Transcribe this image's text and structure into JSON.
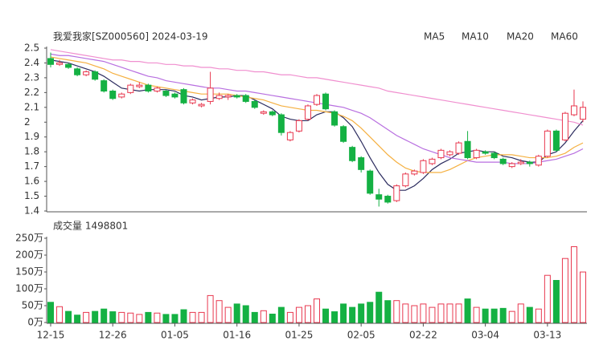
{
  "chart_data": [
    {
      "type": "candlestick",
      "title": "我爱我家[SZ000560] 2024-03-19",
      "categories": [
        "12-15",
        null,
        null,
        null,
        null,
        null,
        null,
        "12-26",
        null,
        null,
        null,
        null,
        null,
        null,
        "01-05",
        null,
        null,
        null,
        null,
        null,
        null,
        "01-16",
        null,
        null,
        null,
        null,
        null,
        null,
        "01-25",
        null,
        null,
        null,
        null,
        null,
        null,
        "02-05",
        null,
        null,
        null,
        null,
        null,
        null,
        "02-22",
        null,
        null,
        null,
        null,
        null,
        null,
        "03-04",
        null,
        null,
        null,
        null,
        null,
        null,
        "03-13",
        null,
        null,
        null,
        null
      ],
      "open": [
        2.43,
        2.39,
        2.39,
        2.36,
        2.32,
        2.34,
        2.28,
        2.21,
        2.17,
        2.2,
        2.24,
        2.25,
        2.21,
        2.21,
        2.19,
        2.22,
        2.13,
        2.11,
        2.14,
        2.16,
        2.17,
        2.18,
        2.18,
        2.14,
        2.06,
        2.07,
        2.05,
        1.88,
        1.94,
        2.02,
        2.12,
        2.19,
        2.07,
        1.97,
        1.83,
        1.76,
        1.67,
        1.51,
        1.5,
        1.47,
        1.57,
        1.65,
        1.66,
        1.72,
        1.76,
        1.78,
        1.79,
        1.87,
        1.76,
        1.8,
        1.79,
        1.75,
        1.7,
        1.72,
        1.73,
        1.71,
        1.77,
        1.94,
        1.88,
        2.05,
        2.02
      ],
      "high": [
        2.47,
        2.42,
        2.4,
        2.37,
        2.35,
        2.35,
        2.29,
        2.22,
        2.2,
        2.26,
        2.27,
        2.26,
        2.24,
        2.22,
        2.2,
        2.23,
        2.16,
        2.13,
        2.34,
        2.2,
        2.19,
        2.19,
        2.19,
        2.15,
        2.08,
        2.08,
        2.06,
        1.94,
        2.02,
        2.12,
        2.19,
        2.2,
        2.08,
        1.98,
        1.84,
        1.77,
        1.68,
        1.55,
        1.51,
        1.58,
        1.66,
        1.68,
        1.75,
        1.76,
        1.82,
        1.81,
        1.87,
        1.94,
        1.82,
        1.81,
        1.8,
        1.76,
        1.73,
        1.75,
        1.74,
        1.78,
        1.95,
        1.95,
        2.07,
        2.22,
        2.14
      ],
      "low": [
        2.37,
        2.38,
        2.36,
        2.31,
        2.31,
        2.28,
        2.2,
        2.15,
        2.16,
        2.19,
        2.23,
        2.2,
        2.2,
        2.17,
        2.16,
        2.12,
        2.12,
        2.1,
        2.12,
        2.15,
        2.15,
        2.16,
        2.13,
        2.09,
        2.05,
        2.04,
        1.91,
        1.87,
        1.93,
        2.01,
        2.11,
        2.08,
        1.97,
        1.86,
        1.73,
        1.66,
        1.51,
        1.43,
        1.45,
        1.46,
        1.56,
        1.64,
        1.65,
        1.71,
        1.75,
        1.77,
        1.78,
        1.75,
        1.75,
        1.78,
        1.75,
        1.71,
        1.69,
        1.71,
        1.7,
        1.7,
        1.76,
        1.8,
        1.87,
        2.04,
        2.0
      ],
      "close": [
        2.39,
        2.4,
        2.37,
        2.32,
        2.34,
        2.29,
        2.21,
        2.16,
        2.19,
        2.25,
        2.25,
        2.21,
        2.23,
        2.18,
        2.17,
        2.13,
        2.15,
        2.12,
        2.23,
        2.18,
        2.18,
        2.17,
        2.14,
        2.1,
        2.07,
        2.05,
        1.93,
        1.93,
        2.01,
        2.11,
        2.18,
        2.09,
        1.98,
        1.87,
        1.74,
        1.68,
        1.52,
        1.48,
        1.46,
        1.57,
        1.65,
        1.67,
        1.74,
        1.75,
        1.81,
        1.8,
        1.86,
        1.76,
        1.81,
        1.79,
        1.76,
        1.72,
        1.72,
        1.73,
        1.72,
        1.77,
        1.94,
        1.81,
        2.06,
        2.11,
        2.1
      ],
      "up_color": "#e8384f",
      "down_color": "#14b143",
      "series": [
        {
          "name": "MA5",
          "color": "#2b2b5e",
          "values": [
            2.42,
            2.41,
            2.4,
            2.38,
            2.36,
            2.34,
            2.31,
            2.27,
            2.23,
            2.22,
            2.21,
            2.22,
            2.22,
            2.22,
            2.21,
            2.18,
            2.17,
            2.15,
            2.16,
            2.17,
            2.17,
            2.18,
            2.18,
            2.15,
            2.12,
            2.09,
            2.04,
            2.02,
            2.01,
            2.01,
            2.05,
            2.07,
            2.07,
            2.03,
            1.97,
            1.87,
            1.76,
            1.66,
            1.58,
            1.54,
            1.54,
            1.57,
            1.62,
            1.68,
            1.72,
            1.75,
            1.79,
            1.8,
            1.81,
            1.8,
            1.8,
            1.77,
            1.76,
            1.74,
            1.73,
            1.73,
            1.78,
            1.8,
            1.86,
            1.94,
            2.01
          ]
        },
        {
          "name": "MA10",
          "color": "#f5b041",
          "values": [
            2.44,
            2.43,
            2.42,
            2.41,
            2.4,
            2.38,
            2.36,
            2.33,
            2.31,
            2.29,
            2.27,
            2.25,
            2.24,
            2.23,
            2.22,
            2.21,
            2.2,
            2.19,
            2.19,
            2.19,
            2.19,
            2.18,
            2.17,
            2.16,
            2.15,
            2.13,
            2.11,
            2.1,
            2.09,
            2.08,
            2.08,
            2.07,
            2.06,
            2.04,
            2.01,
            1.96,
            1.9,
            1.84,
            1.78,
            1.73,
            1.69,
            1.67,
            1.66,
            1.66,
            1.66,
            1.68,
            1.71,
            1.74,
            1.76,
            1.77,
            1.78,
            1.78,
            1.78,
            1.77,
            1.76,
            1.76,
            1.76,
            1.77,
            1.79,
            1.83,
            1.86
          ]
        },
        {
          "name": "MA20",
          "color": "#b86fe0",
          "values": [
            2.46,
            2.45,
            2.45,
            2.44,
            2.43,
            2.42,
            2.41,
            2.39,
            2.37,
            2.35,
            2.33,
            2.31,
            2.3,
            2.28,
            2.27,
            2.26,
            2.25,
            2.24,
            2.23,
            2.23,
            2.22,
            2.21,
            2.21,
            2.2,
            2.19,
            2.18,
            2.17,
            2.16,
            2.15,
            2.14,
            2.13,
            2.12,
            2.11,
            2.1,
            2.08,
            2.06,
            2.03,
            1.99,
            1.95,
            1.91,
            1.88,
            1.85,
            1.82,
            1.8,
            1.78,
            1.76,
            1.75,
            1.74,
            1.73,
            1.73,
            1.73,
            1.73,
            1.72,
            1.72,
            1.72,
            1.73,
            1.74,
            1.75,
            1.77,
            1.79,
            1.82
          ]
        },
        {
          "name": "MA60",
          "color": "#f08fcf",
          "values": [
            2.49,
            2.48,
            2.47,
            2.46,
            2.45,
            2.44,
            2.43,
            2.42,
            2.42,
            2.41,
            2.41,
            2.4,
            2.4,
            2.39,
            2.39,
            2.38,
            2.38,
            2.37,
            2.37,
            2.36,
            2.36,
            2.35,
            2.35,
            2.34,
            2.34,
            2.33,
            2.32,
            2.32,
            2.31,
            2.3,
            2.3,
            2.29,
            2.28,
            2.27,
            2.26,
            2.25,
            2.24,
            2.23,
            2.21,
            2.2,
            2.19,
            2.18,
            2.17,
            2.16,
            2.15,
            2.14,
            2.13,
            2.12,
            2.11,
            2.1,
            2.09,
            2.08,
            2.07,
            2.06,
            2.05,
            2.04,
            2.03,
            2.02,
            2.01,
            2.0,
            1.98
          ]
        }
      ],
      "ylim": [
        1.4,
        2.5
      ],
      "yticks": [
        1.4,
        1.5,
        1.6,
        1.7,
        1.8,
        1.9,
        2,
        2.1,
        2.2,
        2.3,
        2.4,
        2.5
      ]
    },
    {
      "type": "volume",
      "title": "成交量 1498801",
      "values": [
        60,
        47,
        33,
        22,
        30,
        33,
        40,
        32,
        30,
        28,
        24,
        30,
        28,
        24,
        24,
        38,
        30,
        30,
        80,
        65,
        45,
        55,
        50,
        30,
        35,
        25,
        45,
        30,
        45,
        50,
        70,
        40,
        32,
        55,
        45,
        55,
        60,
        90,
        65,
        65,
        55,
        50,
        55,
        45,
        55,
        55,
        55,
        70,
        45,
        40,
        40,
        42,
        33,
        55,
        45,
        40,
        140,
        125,
        190,
        225,
        149.88
      ],
      "ylim": [
        0,
        250
      ],
      "yticks": [
        {
          "value": 0,
          "label": "0万"
        },
        {
          "value": 50,
          "label": "50万"
        },
        {
          "value": 100,
          "label": "100万"
        },
        {
          "value": 150,
          "label": "150万"
        },
        {
          "value": 200,
          "label": "200万"
        },
        {
          "value": 250,
          "label": "250万"
        }
      ]
    }
  ]
}
